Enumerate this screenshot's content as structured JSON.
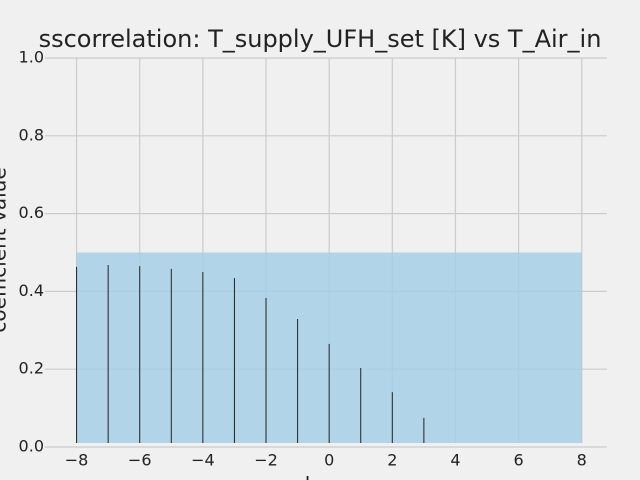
{
  "chart_data": {
    "type": "stem",
    "title": "sscorrelation: T_supply_UFH_set [K] vs T_Air_in",
    "xlabel": "lag",
    "ylabel": "coefficient value",
    "x": [
      -8,
      -7,
      -6,
      -5,
      -4,
      -3,
      -2,
      -1,
      0,
      1,
      2,
      3
    ],
    "values": [
      0.463,
      0.468,
      0.465,
      0.458,
      0.45,
      0.434,
      0.383,
      0.329,
      0.265,
      0.203,
      0.141,
      0.075
    ],
    "color": "#222222",
    "band": {
      "x": [
        -8,
        8
      ],
      "y": [
        0,
        0.5
      ],
      "color": "#a6cfe6"
    },
    "xlim": [
      -9.0,
      8.8
    ],
    "ylim": [
      0,
      1.0
    ],
    "xticks": [
      {
        "value": -8,
        "label": "−8"
      },
      {
        "value": -6,
        "label": "−6"
      },
      {
        "value": -4,
        "label": "−4"
      },
      {
        "value": -2,
        "label": "−2"
      },
      0,
      2,
      4,
      6,
      8
    ],
    "yticks": [
      {
        "value": 0,
        "label": "0.0"
      },
      0.2,
      0.4,
      0.6,
      0.8,
      {
        "value": 1,
        "label": "1.0"
      }
    ],
    "grid": true
  }
}
